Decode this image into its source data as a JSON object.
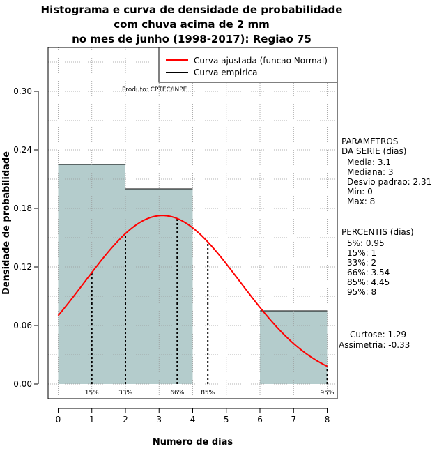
{
  "chart_data": {
    "type": "bar",
    "title_lines": [
      "Histograma e curva de densidade de probabilidade",
      "com chuva acima de 2 mm",
      "no mes de junho (1998-2017): Regiao 75"
    ],
    "xlabel": "Numero de dias",
    "ylabel": "Densidade de probabilidade",
    "xlim": [
      -0.3,
      8.3
    ],
    "ylim": [
      -0.015,
      0.345
    ],
    "x_ticks": [
      0,
      1,
      2,
      3,
      4,
      5,
      6,
      7,
      8
    ],
    "x_tick_labels": [
      "0",
      "1",
      "2",
      "3",
      "4",
      "5",
      "6",
      "7",
      "8"
    ],
    "y_ticks": [
      0.0,
      0.06,
      0.12,
      0.18,
      0.24,
      0.3
    ],
    "y_tick_labels": [
      "0.00",
      "0.06",
      "0.12",
      "0.18",
      "0.24",
      "0.30"
    ],
    "x_grid": [
      0,
      1,
      2,
      3,
      4,
      5,
      6,
      7,
      8
    ],
    "y_grid": [
      0.0,
      0.03,
      0.06,
      0.09,
      0.12,
      0.15,
      0.18,
      0.21,
      0.24,
      0.27,
      0.3,
      0.33
    ],
    "histogram": [
      {
        "start": 0,
        "end": 2,
        "density": 0.225
      },
      {
        "start": 2,
        "end": 4,
        "density": 0.2
      },
      {
        "start": 4,
        "end": 6,
        "density": 0.0
      },
      {
        "start": 6,
        "end": 8,
        "density": 0.075
      }
    ],
    "fitted_curve": {
      "name": "Curva ajustada (funcao Normal)",
      "color": "#ff0000",
      "mean": 3.1,
      "sd": 2.31,
      "x_range": [
        0,
        8
      ]
    },
    "empirical_curve": {
      "name": "Curva empirica",
      "color": "#000000"
    },
    "percentile_lines": [
      {
        "x": 1.0,
        "label": "15%"
      },
      {
        "x": 2.0,
        "label": "33%"
      },
      {
        "x": 3.54,
        "label": "66%"
      },
      {
        "x": 4.45,
        "label": "85%"
      },
      {
        "x": 8.0,
        "label": "95%"
      }
    ],
    "bar_color": "#b4cccc",
    "legend_position": "top-right",
    "annotation": "Produto: CPTEC/INPE"
  },
  "stats_panel": {
    "params_title_1": "PARAMETROS",
    "params_title_2": "DA SERIE (dias)",
    "params": [
      "Media: 3.1",
      "Mediana: 3",
      "Desvio padrao: 2.31",
      "Min: 0",
      "Max: 8"
    ],
    "percentis_title": "PERCENTIS (dias)",
    "percentis": [
      "5%: 0.95",
      "15%: 1",
      "33%: 2",
      "66%: 3.54",
      "85%: 4.45",
      "95%: 8"
    ],
    "curtose": "Curtose: 1.29",
    "assimetria": "Assimetria: -0.33"
  }
}
